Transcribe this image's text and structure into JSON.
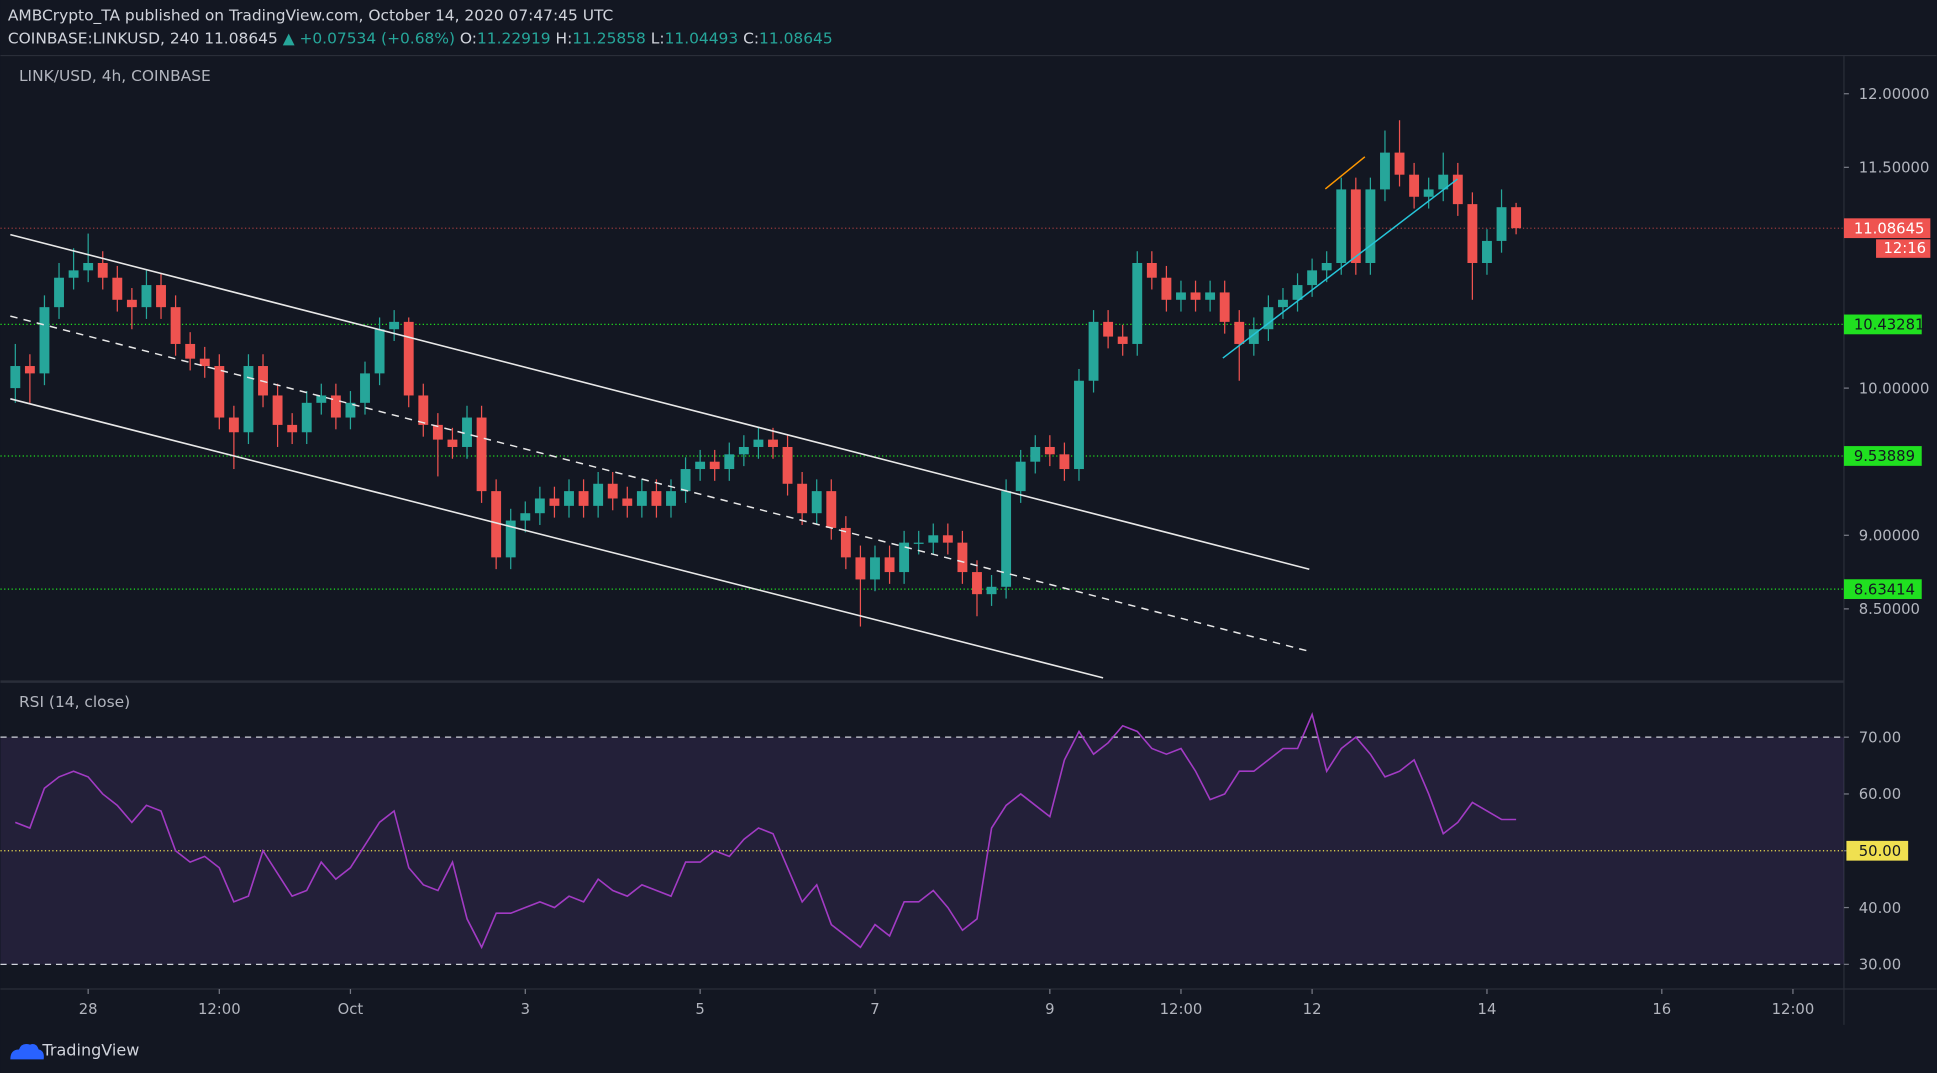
{
  "header": {
    "publisher": "AMBCrypto_TA published on TradingView.com, October 14, 2020 07:47:45 UTC",
    "symbol": "COINBASE:LINKUSD, 240",
    "last": "11.08645",
    "change": "▲ +0.07534 (+0.68%)",
    "ohlc": [
      {
        "label": "O:",
        "value": "11.22919"
      },
      {
        "label": "H:",
        "value": "11.25858"
      },
      {
        "label": "L:",
        "value": "11.04493"
      },
      {
        "label": "C:",
        "value": "11.08645"
      }
    ]
  },
  "footer": {
    "brand": "TradingView"
  },
  "chart_data": [
    {
      "type": "candlestick",
      "title": "LINK/USD, 4h, COINBASE",
      "up_color": "#26a69a",
      "down_color": "#ef5350",
      "open": [
        10.0,
        10.15,
        10.1,
        10.55,
        10.75,
        10.8,
        10.85,
        10.75,
        10.6,
        10.55,
        10.7,
        10.55,
        10.3,
        10.2,
        10.15,
        9.8,
        9.7,
        10.15,
        9.95,
        9.75,
        9.7,
        9.9,
        9.95,
        9.8,
        9.9,
        10.1,
        10.4,
        10.45,
        9.95,
        9.75,
        9.65,
        9.6,
        9.8,
        9.3,
        8.85,
        9.1,
        9.15,
        9.25,
        9.2,
        9.3,
        9.2,
        9.35,
        9.25,
        9.2,
        9.3,
        9.2,
        9.3,
        9.45,
        9.5,
        9.45,
        9.55,
        9.6,
        9.65,
        9.6,
        9.35,
        9.15,
        9.3,
        9.05,
        8.85,
        8.7,
        8.85,
        8.75,
        8.95,
        8.95,
        9.0,
        8.95,
        8.75,
        8.6,
        8.65,
        9.3,
        9.5,
        9.6,
        9.55,
        9.45,
        10.05,
        10.45,
        10.35,
        10.3,
        10.85,
        10.75,
        10.6,
        10.65,
        10.6,
        10.65,
        10.45,
        10.3,
        10.4,
        10.55,
        10.6,
        10.7,
        10.8,
        10.85,
        11.35,
        10.85,
        11.35,
        11.6,
        11.45,
        11.3,
        11.35,
        11.45,
        11.25,
        10.85,
        11.0,
        11.22919
      ],
      "high": [
        10.3,
        10.23,
        10.63,
        10.85,
        10.95,
        11.05,
        10.93,
        10.83,
        10.68,
        10.8,
        10.78,
        10.63,
        10.38,
        10.28,
        10.23,
        9.88,
        10.23,
        10.23,
        10.03,
        9.83,
        9.98,
        10.03,
        10.03,
        9.98,
        10.18,
        10.48,
        10.53,
        10.48,
        10.03,
        9.83,
        9.73,
        9.88,
        9.88,
        9.38,
        9.18,
        9.23,
        9.33,
        9.33,
        9.38,
        9.38,
        9.43,
        9.43,
        9.33,
        9.38,
        9.38,
        9.38,
        9.53,
        9.58,
        9.58,
        9.63,
        9.68,
        9.73,
        9.73,
        9.68,
        9.43,
        9.38,
        9.38,
        9.13,
        8.93,
        8.93,
        8.93,
        9.03,
        9.03,
        9.08,
        9.08,
        9.03,
        8.83,
        8.73,
        9.38,
        9.58,
        9.68,
        9.68,
        9.63,
        10.13,
        10.53,
        10.53,
        10.43,
        10.93,
        10.93,
        10.83,
        10.73,
        10.73,
        10.73,
        10.73,
        10.53,
        10.48,
        10.63,
        10.68,
        10.78,
        10.88,
        10.93,
        11.43,
        11.43,
        11.43,
        11.75,
        11.82,
        11.53,
        11.43,
        11.6,
        11.53,
        11.33,
        11.08,
        11.35,
        11.25858
      ],
      "low": [
        9.9,
        9.9,
        10.02,
        10.47,
        10.67,
        10.72,
        10.67,
        10.52,
        10.4,
        10.47,
        10.47,
        10.22,
        10.12,
        10.07,
        9.72,
        9.45,
        9.62,
        9.87,
        9.6,
        9.62,
        9.62,
        9.82,
        9.72,
        9.72,
        9.82,
        10.02,
        10.32,
        9.87,
        9.67,
        9.4,
        9.52,
        9.52,
        9.22,
        8.77,
        8.77,
        9.02,
        9.07,
        9.12,
        9.12,
        9.12,
        9.12,
        9.17,
        9.12,
        9.12,
        9.12,
        9.12,
        9.22,
        9.37,
        9.37,
        9.37,
        9.47,
        9.52,
        9.52,
        9.27,
        9.07,
        9.07,
        8.97,
        8.77,
        8.38,
        8.62,
        8.67,
        8.67,
        8.87,
        8.87,
        8.87,
        8.67,
        8.45,
        8.52,
        8.57,
        9.22,
        9.42,
        9.47,
        9.37,
        9.37,
        9.97,
        10.27,
        10.22,
        10.22,
        10.67,
        10.52,
        10.52,
        10.52,
        10.52,
        10.37,
        10.05,
        10.22,
        10.32,
        10.47,
        10.52,
        10.62,
        10.72,
        10.77,
        10.77,
        10.77,
        11.27,
        11.37,
        11.22,
        11.22,
        11.27,
        11.17,
        10.6,
        10.77,
        10.92,
        11.04493
      ],
      "close": [
        10.15,
        10.1,
        10.55,
        10.75,
        10.8,
        10.85,
        10.75,
        10.6,
        10.55,
        10.7,
        10.55,
        10.3,
        10.2,
        10.15,
        9.8,
        9.7,
        10.15,
        9.95,
        9.75,
        9.7,
        9.9,
        9.95,
        9.8,
        9.9,
        10.1,
        10.4,
        10.45,
        9.95,
        9.75,
        9.65,
        9.6,
        9.8,
        9.3,
        8.85,
        9.1,
        9.15,
        9.25,
        9.2,
        9.3,
        9.2,
        9.35,
        9.25,
        9.2,
        9.3,
        9.2,
        9.3,
        9.45,
        9.5,
        9.45,
        9.55,
        9.6,
        9.65,
        9.6,
        9.35,
        9.15,
        9.3,
        9.05,
        8.85,
        8.7,
        8.85,
        8.75,
        8.95,
        8.95,
        9.0,
        8.95,
        8.75,
        8.6,
        8.65,
        9.3,
        9.5,
        9.6,
        9.55,
        9.45,
        10.05,
        10.45,
        10.35,
        10.3,
        10.85,
        10.75,
        10.6,
        10.65,
        10.6,
        10.65,
        10.45,
        10.3,
        10.4,
        10.55,
        10.6,
        10.7,
        10.8,
        10.85,
        11.35,
        10.85,
        11.35,
        11.6,
        11.45,
        11.3,
        11.35,
        11.45,
        11.25,
        10.85,
        11.0,
        11.22919,
        11.08645
      ],
      "xlim": [
        -1.02,
        125.5
      ],
      "xticks": [
        {
          "value": 5,
          "label": "28"
        },
        {
          "value": 14,
          "label": "12:00"
        },
        {
          "value": 23,
          "label": "Oct"
        },
        {
          "value": 35,
          "label": "3"
        },
        {
          "value": 47,
          "label": "5"
        },
        {
          "value": 59,
          "label": "7"
        },
        {
          "value": 71,
          "label": "9"
        },
        {
          "value": 80,
          "label": "12:00"
        },
        {
          "value": 89,
          "label": "12"
        },
        {
          "value": 101,
          "label": "14"
        },
        {
          "value": 113,
          "label": "16"
        },
        {
          "value": 122,
          "label": "12:00"
        }
      ],
      "ylim": [
        8.006,
        12.251
      ],
      "yticks": [
        {
          "value": 12,
          "label": "12.00000"
        },
        {
          "value": 11.5,
          "label": "11.50000"
        },
        {
          "value": 10,
          "label": "10.00000"
        },
        {
          "value": 9,
          "label": "9.00000"
        },
        {
          "value": 8.5,
          "label": "8.50000"
        }
      ],
      "levels": [
        10.43281,
        9.53889,
        8.63414
      ],
      "level_color": "#20e020",
      "countdown": "12:16"
    },
    {
      "type": "line",
      "title": "RSI (14, close)",
      "color": "#a23bc4",
      "values": [
        55,
        54,
        61,
        63,
        64,
        63,
        60,
        58,
        55,
        58,
        57,
        50,
        48,
        49,
        47,
        41,
        42,
        50,
        46,
        42,
        43,
        48,
        45,
        47,
        51,
        55,
        57,
        47,
        44,
        43,
        48,
        38,
        33,
        39,
        39,
        40,
        41,
        40,
        42,
        41,
        45,
        43,
        42,
        44,
        43,
        42,
        48,
        48,
        50,
        49,
        52,
        54,
        53,
        47,
        41,
        44,
        37,
        35,
        33,
        37,
        35,
        41,
        41,
        43,
        40,
        36,
        38,
        54,
        58,
        60,
        58,
        56,
        66,
        71,
        67,
        69,
        72,
        71,
        68,
        67,
        68,
        64,
        59,
        60,
        64,
        64,
        66,
        68,
        68,
        74,
        64,
        68,
        70,
        67,
        63,
        64,
        66,
        60,
        53,
        55,
        58.5,
        57,
        55.5,
        55.5
      ],
      "ylim": [
        25.87,
        79.57
      ],
      "yticks": [
        {
          "value": 70,
          "label": "70.00"
        },
        {
          "value": 60,
          "label": "60.00"
        },
        {
          "value": 50,
          "label": "50.00"
        },
        {
          "value": 40,
          "label": "40.00"
        },
        {
          "value": 30,
          "label": "30.00"
        }
      ],
      "band": [
        30,
        70
      ],
      "midline": 50
    }
  ]
}
